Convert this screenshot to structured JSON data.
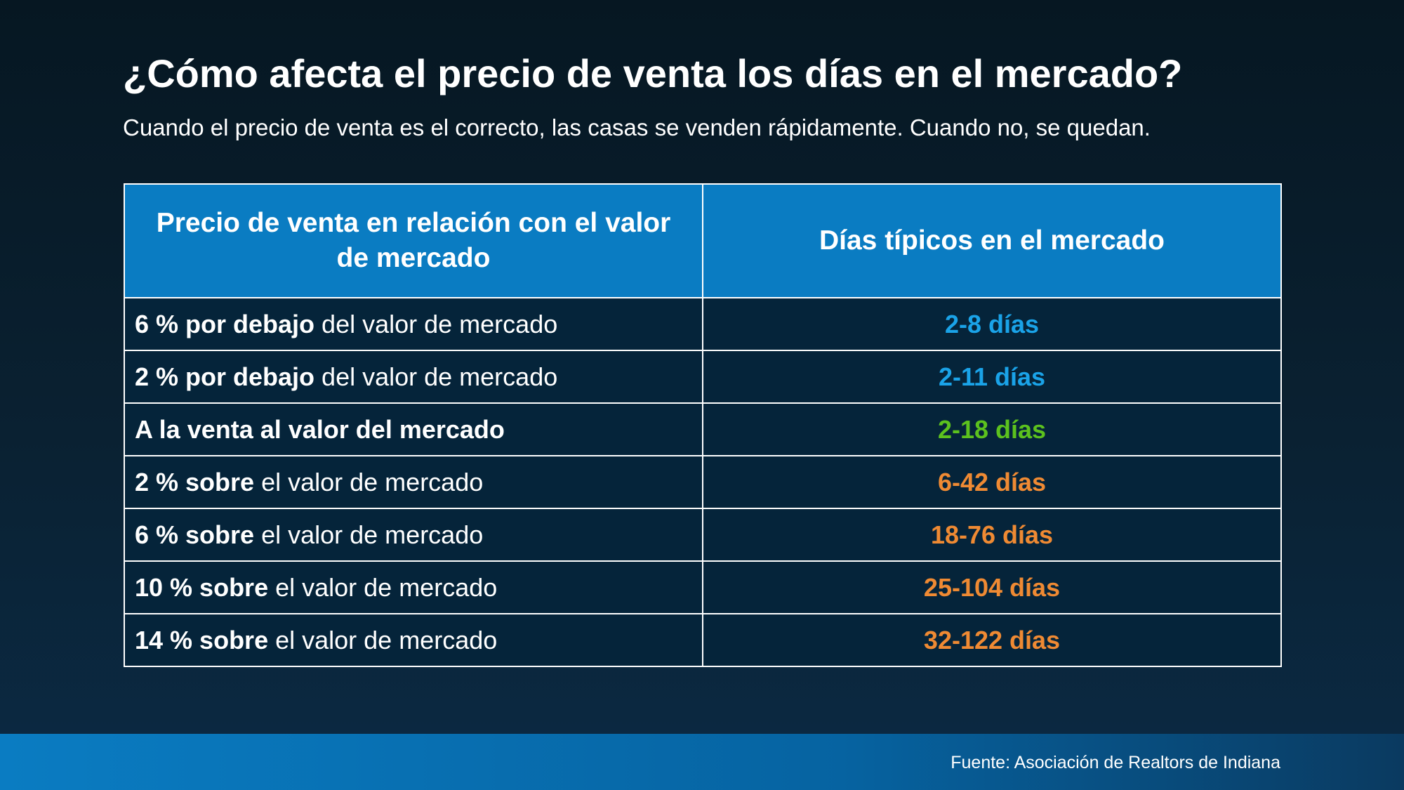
{
  "title": "¿Cómo afecta el precio de venta los días en el mercado?",
  "subtitle": "Cuando el precio de venta es el correcto, las casas se venden rápidamente. Cuando no, se quedan.",
  "source": "Fuente: Asociación de Realtors de Indiana",
  "colors": {
    "header_bg": "#0a7cc2",
    "row_bg": "#05243a",
    "below_market": "#1aa3e8",
    "at_market": "#5cc21e",
    "above_market": "#ef8a33"
  },
  "chart_data": {
    "type": "table",
    "columns": [
      "Precio de venta en relación con el valor de mercado",
      "Días típicos en el mercado"
    ],
    "rows": [
      {
        "bold": "6 % por debajo",
        "rest": " del valor de mercado",
        "days": "2-8 días",
        "color": "#1aa3e8"
      },
      {
        "bold": "2 % por debajo",
        "rest": " del valor de mercado",
        "days": "2-11 días",
        "color": "#1aa3e8"
      },
      {
        "bold": "A la venta al valor del mercado",
        "rest": "",
        "days": "2-18 días",
        "color": "#5cc21e"
      },
      {
        "bold": "2 % sobre",
        "rest": " el valor de mercado",
        "days": "6-42 días",
        "color": "#ef8a33"
      },
      {
        "bold": "6 % sobre",
        "rest": " el valor de mercado",
        "days": "18-76 días",
        "color": "#ef8a33"
      },
      {
        "bold": "10 % sobre",
        "rest": " el valor de mercado",
        "days": "25-104 días",
        "color": "#ef8a33"
      },
      {
        "bold": "14 % sobre",
        "rest": " el valor de mercado",
        "days": "32-122 días",
        "color": "#ef8a33"
      }
    ]
  }
}
